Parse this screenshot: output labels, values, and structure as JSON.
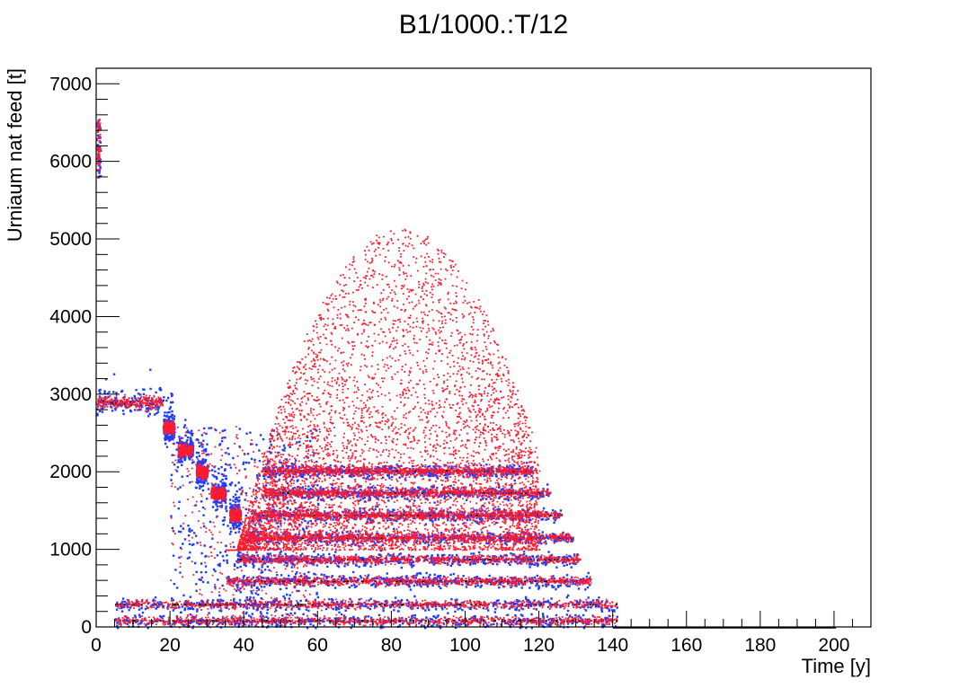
{
  "chart_data": {
    "type": "scatter",
    "title": "B1/1000.:T/12",
    "xlabel": "Time [y]",
    "ylabel": "Urniaum nat feed [t]",
    "xlim": [
      0,
      210
    ],
    "ylim": [
      0,
      7200
    ],
    "x_ticks": [
      0,
      20,
      40,
      60,
      80,
      100,
      120,
      140,
      160,
      180,
      200
    ],
    "y_ticks": [
      0,
      1000,
      2000,
      3000,
      4000,
      5000,
      6000,
      7000
    ],
    "grid": false,
    "legend": "none",
    "colors": {
      "black": "#000000",
      "blue": "#1f3cff",
      "red": "#ff1a2e"
    },
    "series_style": [
      {
        "color": "black",
        "marker": "small dot"
      },
      {
        "color": "blue",
        "marker": "small square"
      },
      {
        "color": "red",
        "marker": "small dot"
      }
    ],
    "initial_cluster": {
      "x": [
        0,
        1
      ],
      "y": [
        5800,
        6550
      ]
    },
    "step_levels": [
      {
        "x": [
          0,
          18
        ],
        "y": 2900
      },
      {
        "x": [
          18,
          21
        ],
        "y": 2580
      },
      {
        "x": [
          22,
          26
        ],
        "y": 2290
      },
      {
        "x": [
          27,
          30
        ],
        "y": 2010
      },
      {
        "x": [
          31,
          35
        ],
        "y": 1730
      },
      {
        "x": [
          36,
          39
        ],
        "y": 1450
      }
    ],
    "bands": [
      {
        "y": 2020,
        "x": [
          45,
          118
        ]
      },
      {
        "y": 1740,
        "x": [
          45,
          123
        ]
      },
      {
        "y": 1450,
        "x": [
          42,
          126
        ]
      },
      {
        "y": 1160,
        "x": [
          40,
          129
        ]
      },
      {
        "y": 880,
        "x": [
          38,
          131
        ]
      },
      {
        "y": 600,
        "x": [
          35,
          134
        ]
      },
      {
        "y": 300,
        "x": [
          5,
          141
        ]
      },
      {
        "y": 90,
        "x": [
          5,
          141
        ]
      }
    ],
    "cloud": {
      "x": [
        35,
        120
      ],
      "y": [
        1000,
        5150
      ]
    },
    "zero_line_x": [
      140,
      200
    ]
  }
}
